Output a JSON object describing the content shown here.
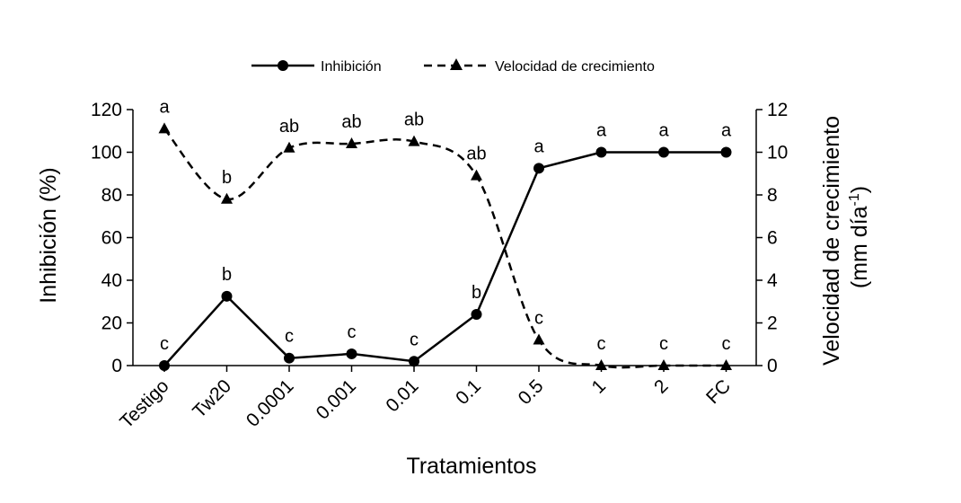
{
  "chart_data": {
    "type": "line",
    "categories": [
      "Testigo",
      "Tw20",
      "0.0001",
      "0.001",
      "0.01",
      "0.1",
      "0.5",
      "1",
      "2",
      "FC"
    ],
    "xlabel": "Tratamientos",
    "ylabel": "Inhibición (%)",
    "y2label_line1": "Velocidad de crecimiento",
    "y2label_line2": "(mm día",
    "y2label_sup": "-1",
    "y2label_close": ")",
    "ylim": [
      0,
      120
    ],
    "y2lim": [
      0,
      12
    ],
    "yticks": [
      0,
      20,
      40,
      60,
      80,
      100,
      120
    ],
    "y2ticks": [
      0,
      2,
      4,
      6,
      8,
      10,
      12
    ],
    "legend_position": "top-center",
    "series": [
      {
        "name": "Inhibición",
        "axis": "left",
        "style": "solid",
        "marker": "circle",
        "values": [
          0,
          32.5,
          3.5,
          5.5,
          2,
          24,
          92.5,
          100,
          100,
          100
        ],
        "letters": [
          "c",
          "b",
          "c",
          "c",
          "c",
          "b",
          "a",
          "a",
          "a",
          "a"
        ]
      },
      {
        "name": "Velocidad de crecimiento",
        "axis": "right",
        "style": "dashed",
        "marker": "triangle",
        "values": [
          11.1,
          7.8,
          10.2,
          10.4,
          10.5,
          8.9,
          1.2,
          0,
          0,
          0
        ],
        "letters": [
          "a",
          "b",
          "ab",
          "ab",
          "ab",
          "ab",
          "c",
          "c",
          "c",
          "c"
        ]
      }
    ]
  }
}
